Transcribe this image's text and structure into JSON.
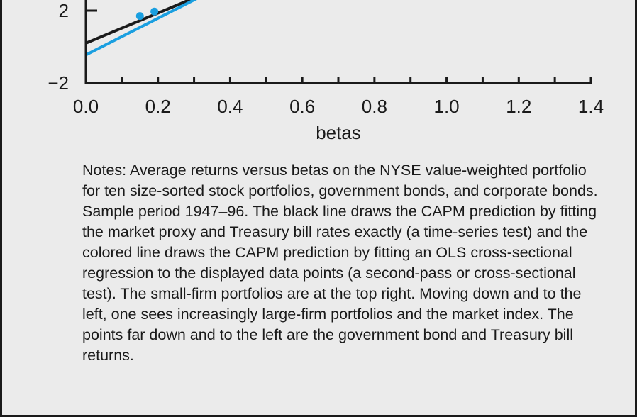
{
  "chart_data": {
    "type": "scatter",
    "xlabel": "betas",
    "ylabel": "",
    "xlim": [
      0.0,
      1.4
    ],
    "ylim": [
      -2,
      2
    ],
    "x_ticks": [
      "0.0",
      "0.2",
      "0.4",
      "0.6",
      "0.8",
      "1.0",
      "1.2",
      "1.4"
    ],
    "y_ticks": [
      "2",
      "−2"
    ],
    "points": [
      {
        "x": 0.15,
        "y": 1.7
      },
      {
        "x": 0.19,
        "y": 1.95
      }
    ],
    "lines": [
      {
        "color": "#1a1a1a",
        "from": [
          0.0,
          0.2
        ],
        "to": [
          0.36,
          3.2
        ]
      },
      {
        "color": "#1a9fe0",
        "from": [
          0.0,
          -0.45
        ],
        "to": [
          0.36,
          3.2
        ]
      }
    ],
    "point_color": "#1a9fe0",
    "grid": false
  },
  "notes": "Notes: Average returns versus betas on the NYSE value-weighted portfolio for ten size-sorted stock portfolios, government bonds, and corporate bonds. Sample period 1947–96. The black line draws the CAPM prediction by fitting the market proxy and Treasury bill rates exactly (a time-series test) and the colored line draws the CAPM prediction by fitting an OLS cross-sectional regression to the displayed data points (a second-pass or cross-sectional test). The small-firm portfolios are at the top right. Moving down and to the left, one sees increasingly large-firm portfolios and the market index. The points far down and to the left are the government bond and Treasury bill returns."
}
